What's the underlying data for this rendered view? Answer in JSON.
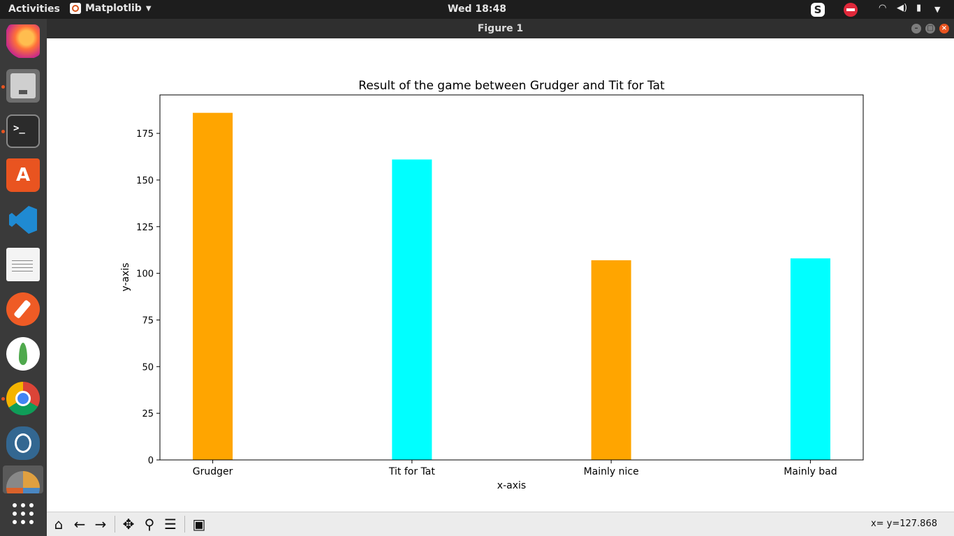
{
  "topbar": {
    "activities": "Activities",
    "app_menu": "Matplotlib",
    "clock": "Wed 18:48",
    "tray_icons": [
      "skype-icon",
      "do-not-disturb-icon",
      "wifi-icon",
      "volume-icon",
      "battery-icon",
      "chevron-down-icon"
    ]
  },
  "dock": {
    "apps": [
      "Firefox",
      "Files",
      "Terminal",
      "Ubuntu Software",
      "Visual Studio Code",
      "Text Editor",
      "Postman",
      "MongoDB Compass",
      "Google Chrome",
      "pgAdmin",
      "Matplotlib"
    ]
  },
  "window": {
    "title": "Figure 1"
  },
  "chart_data": {
    "type": "bar",
    "title": "Result of the game between Grudger and Tit for Tat",
    "xlabel": "x-axis",
    "ylabel": "y-axis",
    "categories": [
      "Grudger",
      "Tit for Tat",
      "Mainly nice",
      "Mainly bad"
    ],
    "values": [
      186,
      161,
      107,
      108
    ],
    "colors": [
      "#ffa500",
      "#00ffff",
      "#ffa500",
      "#00ffff"
    ],
    "ylim": [
      0,
      195.6
    ],
    "yticks": [
      0,
      25,
      50,
      75,
      100,
      125,
      150,
      175
    ],
    "grid": false
  },
  "toolbar": {
    "buttons": [
      "home-icon",
      "back-icon",
      "forward-icon",
      "pan-icon",
      "zoom-icon",
      "configure-subplots-icon",
      "save-icon"
    ],
    "coords": "x= y=127.868"
  }
}
